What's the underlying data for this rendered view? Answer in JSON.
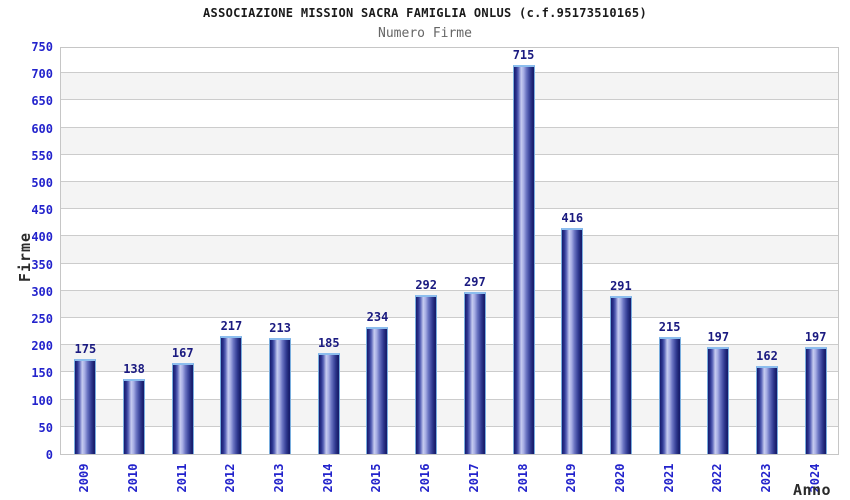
{
  "title": "ASSOCIAZIONE MISSION SACRA FAMIGLIA ONLUS (c.f.95173510165)",
  "subtitle": "Numero Firme",
  "chart_data": {
    "type": "bar",
    "title": "ASSOCIAZIONE MISSION SACRA FAMIGLIA ONLUS (c.f.95173510165)",
    "subtitle": "Numero Firme",
    "xlabel": "Anno",
    "ylabel": "Firme",
    "categories": [
      "2009",
      "2010",
      "2011",
      "2012",
      "2013",
      "2014",
      "2015",
      "2016",
      "2017",
      "2018",
      "2019",
      "2020",
      "2021",
      "2022",
      "2023",
      "2024"
    ],
    "values": [
      175,
      138,
      167,
      217,
      213,
      185,
      234,
      292,
      297,
      715,
      416,
      291,
      215,
      197,
      162,
      197
    ],
    "ylim": [
      0,
      750
    ],
    "ytick_step": 50,
    "grid": "horizontal-gridlines-with-alternating-bands",
    "legend_position": "none",
    "bar_value_labels_shown": true,
    "colors": {
      "tick_label": "#2323cc",
      "value_label": "#1a1a80",
      "bar_dark": "#171a6e",
      "bar_highlight": "#c6cbf0",
      "bar_border": "#79aede",
      "band_gray": "#f4f4f4",
      "gridline": "#cccccc",
      "title": "#1a1a1a",
      "subtitle": "#666666",
      "axis_title": "#2b2b2b",
      "background": "#ffffff"
    }
  }
}
